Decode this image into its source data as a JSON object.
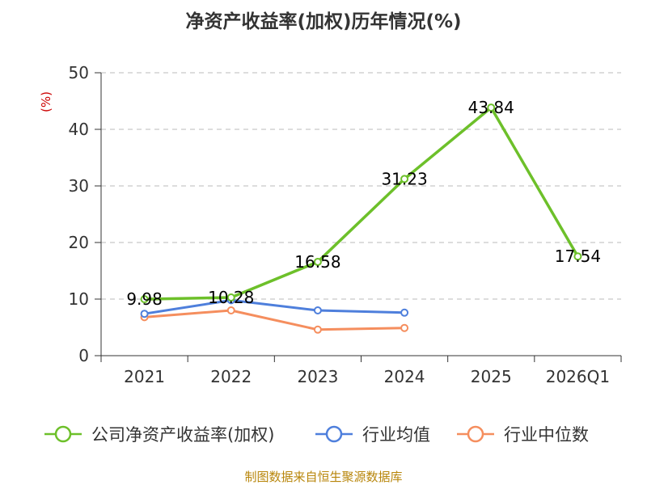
{
  "chart_data": {
    "type": "line",
    "title": "净资产收益率(加权)历年情况(%)",
    "y_unit": "(%)",
    "categories": [
      "2021",
      "2022",
      "2023",
      "2024",
      "2025",
      "2026Q1"
    ],
    "ylim": [
      0,
      50
    ],
    "yticks": [
      "0",
      "10",
      "20",
      "30",
      "40",
      "50"
    ],
    "grid": true,
    "legend_position": "bottom",
    "series": [
      {
        "name": "公司净资产收益率(加权)",
        "color": "#6dc02a",
        "values": [
          9.98,
          10.28,
          16.58,
          31.23,
          43.84,
          17.54
        ],
        "labels": [
          "9.98",
          "10.28",
          "16.58",
          "31.23",
          "43.84",
          "17.54"
        ]
      },
      {
        "name": "行业均值",
        "color": "#4e7fdc",
        "values": [
          7.4,
          9.8,
          8.0,
          7.6,
          null,
          null
        ]
      },
      {
        "name": "行业中位数",
        "color": "#f58e5e",
        "values": [
          6.8,
          8.0,
          4.6,
          4.9,
          null,
          null
        ]
      }
    ],
    "source": "制图数据来自恒生聚源数据库"
  }
}
